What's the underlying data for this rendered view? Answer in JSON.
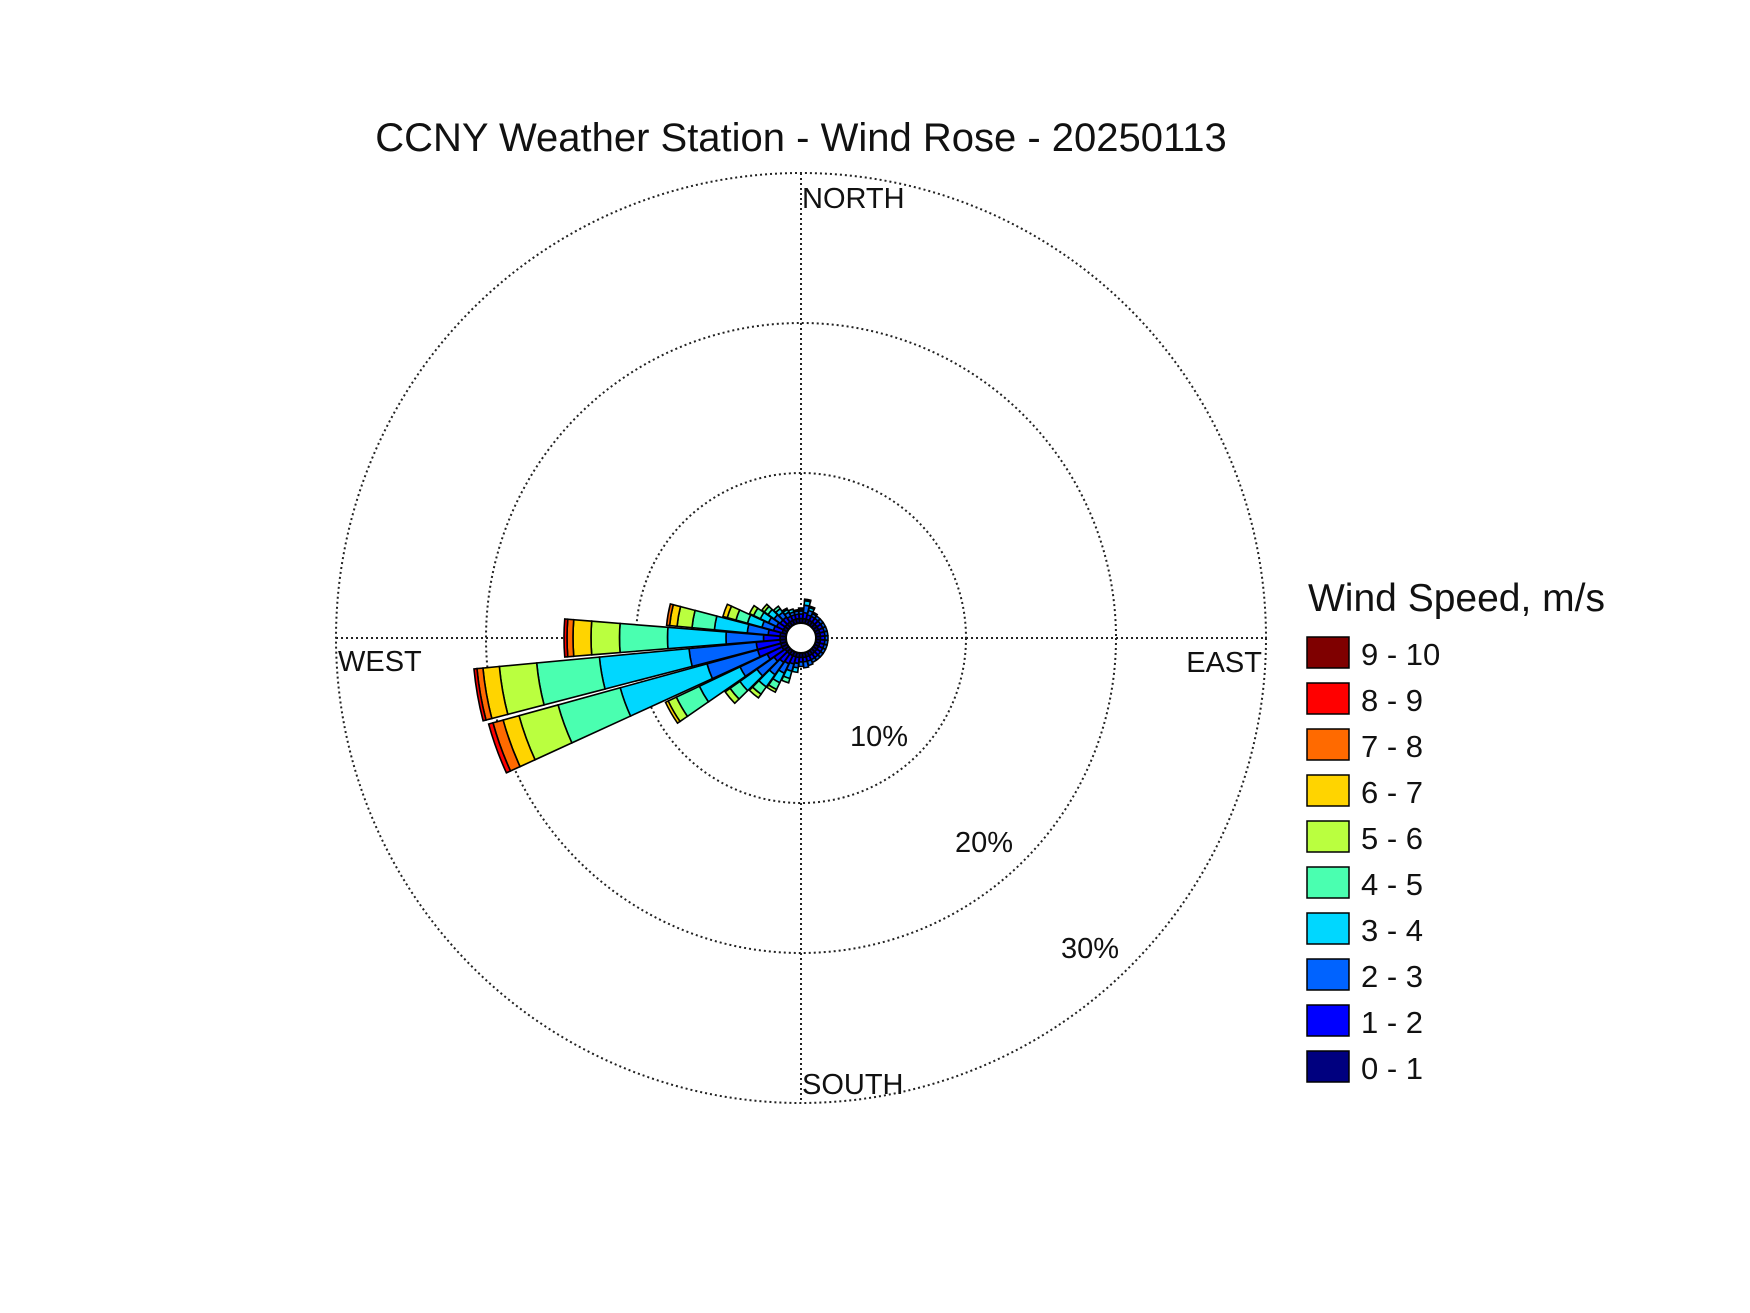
{
  "chart_data": {
    "type": "wind-rose",
    "title": "CCNY Weather Station - Wind Rose - 20250113",
    "directions": {
      "north": "NORTH",
      "south": "SOUTH",
      "east": "EAST",
      "west": "WEST"
    },
    "radial_axis": {
      "rings": [
        10,
        20,
        30
      ],
      "tick_labels": [
        "10%",
        "20%",
        "30%"
      ],
      "max": 30,
      "unit": "%"
    },
    "legend": {
      "title": "Wind Speed, m/s",
      "bins": [
        {
          "label": "9 - 10",
          "color": "#7f0000"
        },
        {
          "label": "8 - 9",
          "color": "#ff0000"
        },
        {
          "label": "7 - 8",
          "color": "#ff6a00"
        },
        {
          "label": "6 - 7",
          "color": "#ffd400"
        },
        {
          "label": "5 - 6",
          "color": "#baff3f"
        },
        {
          "label": "4 - 5",
          "color": "#4affb0"
        },
        {
          "label": "3 - 4",
          "color": "#00d7ff"
        },
        {
          "label": "2 - 3",
          "color": "#0063ff"
        },
        {
          "label": "1 - 2",
          "color": "#0000ff"
        },
        {
          "label": "0 - 1",
          "color": "#00007f"
        }
      ]
    },
    "bin_order_inner_to_outer": [
      "0 - 1",
      "1 - 2",
      "2 - 3",
      "3 - 4",
      "4 - 5",
      "5 - 6",
      "6 - 7",
      "7 - 8",
      "8 - 9",
      "9 - 10"
    ],
    "sectors": [
      {
        "direction_deg": 0,
        "cumulative_pct": [
          0.3,
          0.6,
          0.8,
          0.9,
          1.0
        ]
      },
      {
        "direction_deg": 10,
        "cumulative_pct": [
          0.3,
          0.7,
          1.2,
          1.5,
          1.6
        ]
      },
      {
        "direction_deg": 20,
        "cumulative_pct": [
          0.3,
          0.6,
          0.9,
          1.1,
          1.2
        ]
      },
      {
        "direction_deg": 30,
        "cumulative_pct": [
          0.3,
          0.6,
          0.8,
          0.9
        ]
      },
      {
        "direction_deg": 40,
        "cumulative_pct": [
          0.3,
          0.6,
          0.8
        ]
      },
      {
        "direction_deg": 50,
        "cumulative_pct": [
          0.3,
          0.6,
          0.8
        ]
      },
      {
        "direction_deg": 60,
        "cumulative_pct": [
          0.3,
          0.6,
          0.8
        ]
      },
      {
        "direction_deg": 70,
        "cumulative_pct": [
          0.3,
          0.6,
          0.8
        ]
      },
      {
        "direction_deg": 80,
        "cumulative_pct": [
          0.3,
          0.6,
          0.8
        ]
      },
      {
        "direction_deg": 90,
        "cumulative_pct": [
          0.3,
          0.6,
          0.8
        ]
      },
      {
        "direction_deg": 100,
        "cumulative_pct": [
          0.3,
          0.6,
          0.8
        ]
      },
      {
        "direction_deg": 110,
        "cumulative_pct": [
          0.3,
          0.6,
          0.8
        ]
      },
      {
        "direction_deg": 120,
        "cumulative_pct": [
          0.3,
          0.6,
          0.8
        ]
      },
      {
        "direction_deg": 130,
        "cumulative_pct": [
          0.3,
          0.6,
          0.8
        ]
      },
      {
        "direction_deg": 140,
        "cumulative_pct": [
          0.3,
          0.6,
          0.8
        ]
      },
      {
        "direction_deg": 150,
        "cumulative_pct": [
          0.3,
          0.6,
          0.8
        ]
      },
      {
        "direction_deg": 160,
        "cumulative_pct": [
          0.3,
          0.6,
          0.9
        ]
      },
      {
        "direction_deg": 170,
        "cumulative_pct": [
          0.3,
          0.6,
          1.0
        ]
      },
      {
        "direction_deg": 180,
        "cumulative_pct": [
          0.3,
          0.6,
          0.9
        ]
      },
      {
        "direction_deg": 190,
        "cumulative_pct": [
          0.3,
          0.7,
          1.0,
          1.3
        ]
      },
      {
        "direction_deg": 200,
        "cumulative_pct": [
          0.3,
          0.8,
          1.3,
          1.8,
          2.1
        ]
      },
      {
        "direction_deg": 210,
        "cumulative_pct": [
          0.3,
          0.9,
          1.6,
          2.3,
          2.8,
          3.0
        ]
      },
      {
        "direction_deg": 220,
        "cumulative_pct": [
          0.3,
          1.0,
          2.0,
          3.0,
          3.6,
          3.9
        ]
      },
      {
        "direction_deg": 230,
        "cumulative_pct": [
          0.3,
          1.2,
          2.6,
          4.0,
          4.8,
          5.2
        ]
      },
      {
        "direction_deg": 240,
        "cumulative_pct": [
          0.4,
          1.5,
          3.5,
          6.5,
          8.2,
          8.8,
          9.0
        ]
      },
      {
        "direction_deg": 250,
        "cumulative_pct": [
          0.4,
          2.0,
          5.5,
          11.5,
          15.8,
          18.5,
          19.6,
          20.3,
          20.6
        ]
      },
      {
        "direction_deg": 260,
        "cumulative_pct": [
          0.4,
          2.0,
          6.5,
          12.5,
          16.7,
          19.2,
          20.3,
          20.7,
          20.9
        ]
      },
      {
        "direction_deg": 270,
        "cumulative_pct": [
          0.4,
          1.5,
          4.0,
          7.9,
          11.1,
          13.0,
          14.2,
          14.6,
          14.8
        ]
      },
      {
        "direction_deg": 280,
        "cumulative_pct": [
          0.4,
          1.2,
          2.6,
          4.8,
          6.3,
          7.3,
          7.8,
          8.0
        ]
      },
      {
        "direction_deg": 290,
        "cumulative_pct": [
          0.3,
          0.9,
          1.7,
          2.7,
          3.5,
          4.1,
          4.4
        ]
      },
      {
        "direction_deg": 300,
        "cumulative_pct": [
          0.3,
          0.8,
          1.4,
          2.0,
          2.5,
          2.8
        ]
      },
      {
        "direction_deg": 310,
        "cumulative_pct": [
          0.3,
          0.7,
          1.2,
          1.7,
          2.0,
          2.2
        ]
      },
      {
        "direction_deg": 320,
        "cumulative_pct": [
          0.3,
          0.7,
          1.1,
          1.4,
          1.6
        ]
      },
      {
        "direction_deg": 330,
        "cumulative_pct": [
          0.3,
          0.6,
          0.9,
          1.1,
          1.2
        ]
      },
      {
        "direction_deg": 340,
        "cumulative_pct": [
          0.3,
          0.6,
          0.8,
          1.0
        ]
      },
      {
        "direction_deg": 350,
        "cumulative_pct": [
          0.3,
          0.6,
          0.8,
          0.9
        ]
      }
    ]
  }
}
